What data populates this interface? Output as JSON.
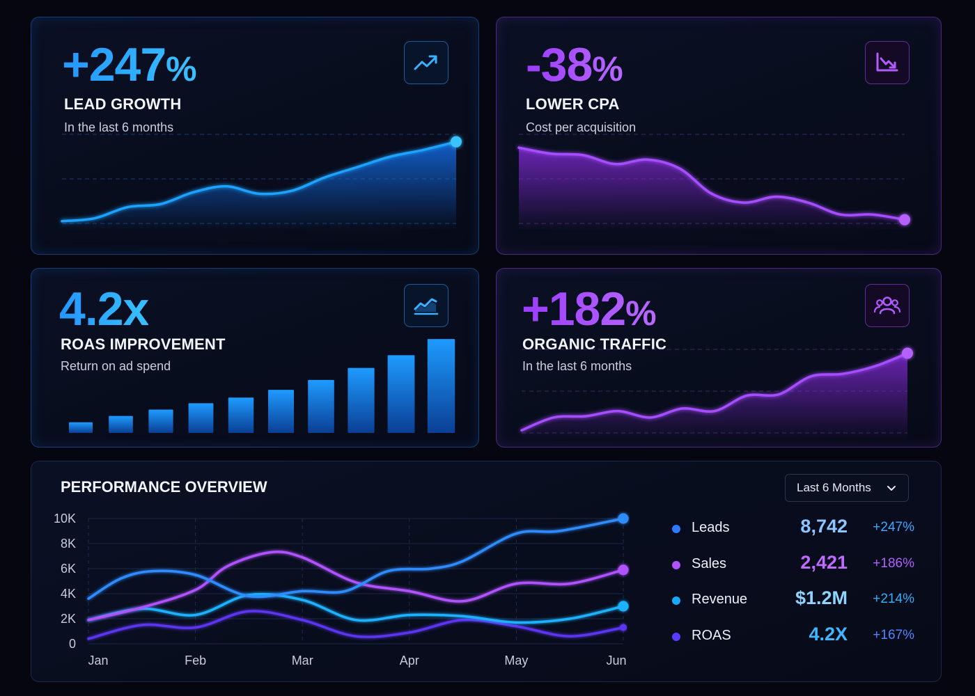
{
  "cards": {
    "lead_growth": {
      "value": "+247",
      "suffix": "%",
      "label": "LEAD GROWTH",
      "sub": "In the last 6 months",
      "icon": "trending-up-icon"
    },
    "lower_cpa": {
      "value": "-38",
      "suffix": "%",
      "label": "LOWER CPA",
      "sub": "Cost per acquisition",
      "icon": "trending-down-icon"
    },
    "roas": {
      "value": "4.2x",
      "label": "ROAS IMPROVEMENT",
      "sub": "Return on ad spend",
      "icon": "area-chart-icon"
    },
    "organic": {
      "value": "+182",
      "suffix": "%",
      "label": "ORGANIC TRAFFIC",
      "sub": "In the last 6 months",
      "icon": "users-icon"
    }
  },
  "overview": {
    "title": "PERFORMANCE OVERVIEW",
    "range_select": "Last 6 Months",
    "legend": [
      {
        "name": "Leads",
        "value": "8,742",
        "change": "+247%",
        "color": "#2f7bff"
      },
      {
        "name": "Sales",
        "value": "2,421",
        "change": "+186%",
        "color": "#b052ff"
      },
      {
        "name": "Revenue",
        "value": "$1.2M",
        "change": "+214%",
        "color": "#1aa8ff"
      },
      {
        "name": "ROAS",
        "value": "4.2X",
        "change": "+167%",
        "color": "#5b3cff"
      }
    ]
  },
  "colors": {
    "blue": "#1aa3ff",
    "purple": "#a24dff",
    "background": "#05060f"
  },
  "chart_data": [
    {
      "type": "area",
      "x": [
        0,
        1,
        2,
        3,
        4,
        5,
        6,
        7,
        8,
        9,
        10,
        11,
        12
      ],
      "values": [
        3,
        7,
        22,
        26,
        42,
        50,
        40,
        44,
        62,
        76,
        90,
        99,
        110
      ],
      "ylim": [
        0,
        120
      ]
    },
    {
      "type": "area",
      "x": [
        0,
        1,
        2,
        3,
        4,
        5,
        6,
        7,
        8,
        9,
        10,
        11,
        12
      ],
      "values": [
        102,
        94,
        92,
        80,
        86,
        74,
        40,
        28,
        36,
        28,
        12,
        12,
        5
      ],
      "ylim": [
        0,
        120
      ]
    },
    {
      "type": "bar",
      "categories": [
        "1",
        "2",
        "3",
        "4",
        "5",
        "6",
        "7",
        "8",
        "9",
        "10"
      ],
      "values": [
        15,
        24,
        33,
        42,
        50,
        61,
        75,
        92,
        110,
        133
      ],
      "ylim": [
        0,
        140
      ]
    },
    {
      "type": "area",
      "x": [
        0,
        1,
        2,
        3,
        4,
        5,
        6,
        7,
        8,
        9,
        10,
        11,
        12
      ],
      "values": [
        4,
        24,
        26,
        34,
        24,
        38,
        34,
        58,
        60,
        88,
        92,
        104,
        124
      ],
      "ylim": [
        0,
        130
      ]
    },
    {
      "type": "line",
      "categories": [
        "Jan",
        "Feb",
        "Mar",
        "Apr",
        "May",
        "Jun"
      ],
      "ylim": [
        0,
        10000
      ],
      "y_ticks": [
        "0",
        "2K",
        "4K",
        "6K",
        "8K",
        "10K"
      ],
      "series": [
        {
          "name": "Leads",
          "color": "#2f8cff",
          "x": [
            0,
            0.3,
            0.6,
            1,
            1.5,
            2,
            2.4,
            2.8,
            3.2,
            3.5,
            4,
            4.4,
            5
          ],
          "y": [
            3600,
            5200,
            5800,
            5500,
            3800,
            4200,
            4200,
            5800,
            6000,
            6600,
            8800,
            9000,
            10000
          ]
        },
        {
          "name": "Sales",
          "color": "#b052ff",
          "x": [
            0,
            0.5,
            1,
            1.3,
            1.7,
            2,
            2.5,
            3,
            3.5,
            4,
            4.5,
            5
          ],
          "y": [
            1900,
            2900,
            4300,
            6200,
            7300,
            6900,
            4900,
            4200,
            3400,
            4800,
            4800,
            5900
          ]
        },
        {
          "name": "Revenue",
          "color": "#1fb2ff",
          "x": [
            0,
            0.5,
            1,
            1.5,
            2,
            2.5,
            3,
            3.5,
            4,
            4.5,
            5
          ],
          "y": [
            1900,
            2800,
            2300,
            3900,
            3500,
            1900,
            2300,
            2200,
            1700,
            2000,
            3000
          ]
        },
        {
          "name": "ROAS",
          "color": "#5b34f0",
          "x": [
            0,
            0.5,
            1,
            1.5,
            2,
            2.5,
            3,
            3.5,
            4,
            4.5,
            5
          ],
          "y": [
            400,
            1500,
            1300,
            2600,
            1900,
            600,
            900,
            1900,
            1400,
            600,
            1300
          ]
        }
      ]
    }
  ]
}
